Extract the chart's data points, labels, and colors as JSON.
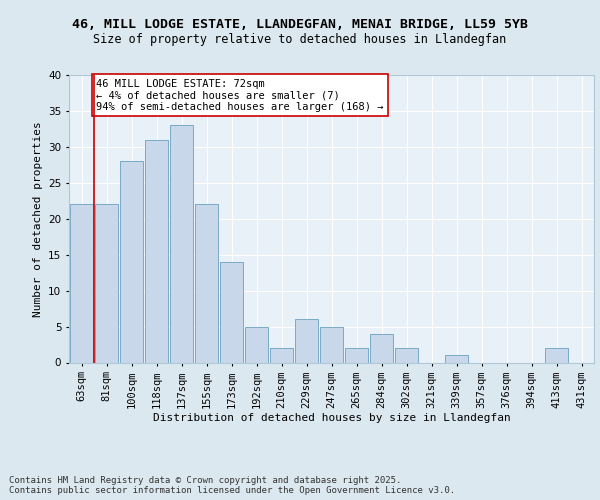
{
  "title1": "46, MILL LODGE ESTATE, LLANDEGFAN, MENAI BRIDGE, LL59 5YB",
  "title2": "Size of property relative to detached houses in Llandegfan",
  "xlabel": "Distribution of detached houses by size in Llandegfan",
  "ylabel": "Number of detached properties",
  "categories": [
    "63sqm",
    "81sqm",
    "100sqm",
    "118sqm",
    "137sqm",
    "155sqm",
    "173sqm",
    "192sqm",
    "210sqm",
    "229sqm",
    "247sqm",
    "265sqm",
    "284sqm",
    "302sqm",
    "321sqm",
    "339sqm",
    "357sqm",
    "376sqm",
    "394sqm",
    "413sqm",
    "431sqm"
  ],
  "values": [
    22,
    22,
    28,
    31,
    33,
    22,
    14,
    5,
    2,
    6,
    5,
    2,
    4,
    2,
    0,
    1,
    0,
    0,
    0,
    2,
    0
  ],
  "bar_color": "#c8d8ea",
  "bar_edge_color": "#7aaac8",
  "vline_color": "#cc0000",
  "vline_x": 0.5,
  "annotation_text": "46 MILL LODGE ESTATE: 72sqm\n← 4% of detached houses are smaller (7)\n94% of semi-detached houses are larger (168) →",
  "annotation_box_color": "#ffffff",
  "annotation_box_edge": "#cc0000",
  "ylim": [
    0,
    40
  ],
  "yticks": [
    0,
    5,
    10,
    15,
    20,
    25,
    30,
    35,
    40
  ],
  "bg_color": "#dce8f0",
  "plot_bg_color": "#e8f0f8",
  "footer": "Contains HM Land Registry data © Crown copyright and database right 2025.\nContains public sector information licensed under the Open Government Licence v3.0.",
  "title1_fontsize": 9.5,
  "title2_fontsize": 8.5,
  "xlabel_fontsize": 8,
  "ylabel_fontsize": 8,
  "tick_fontsize": 7.5,
  "footer_fontsize": 6.5,
  "annot_fontsize": 7.5
}
